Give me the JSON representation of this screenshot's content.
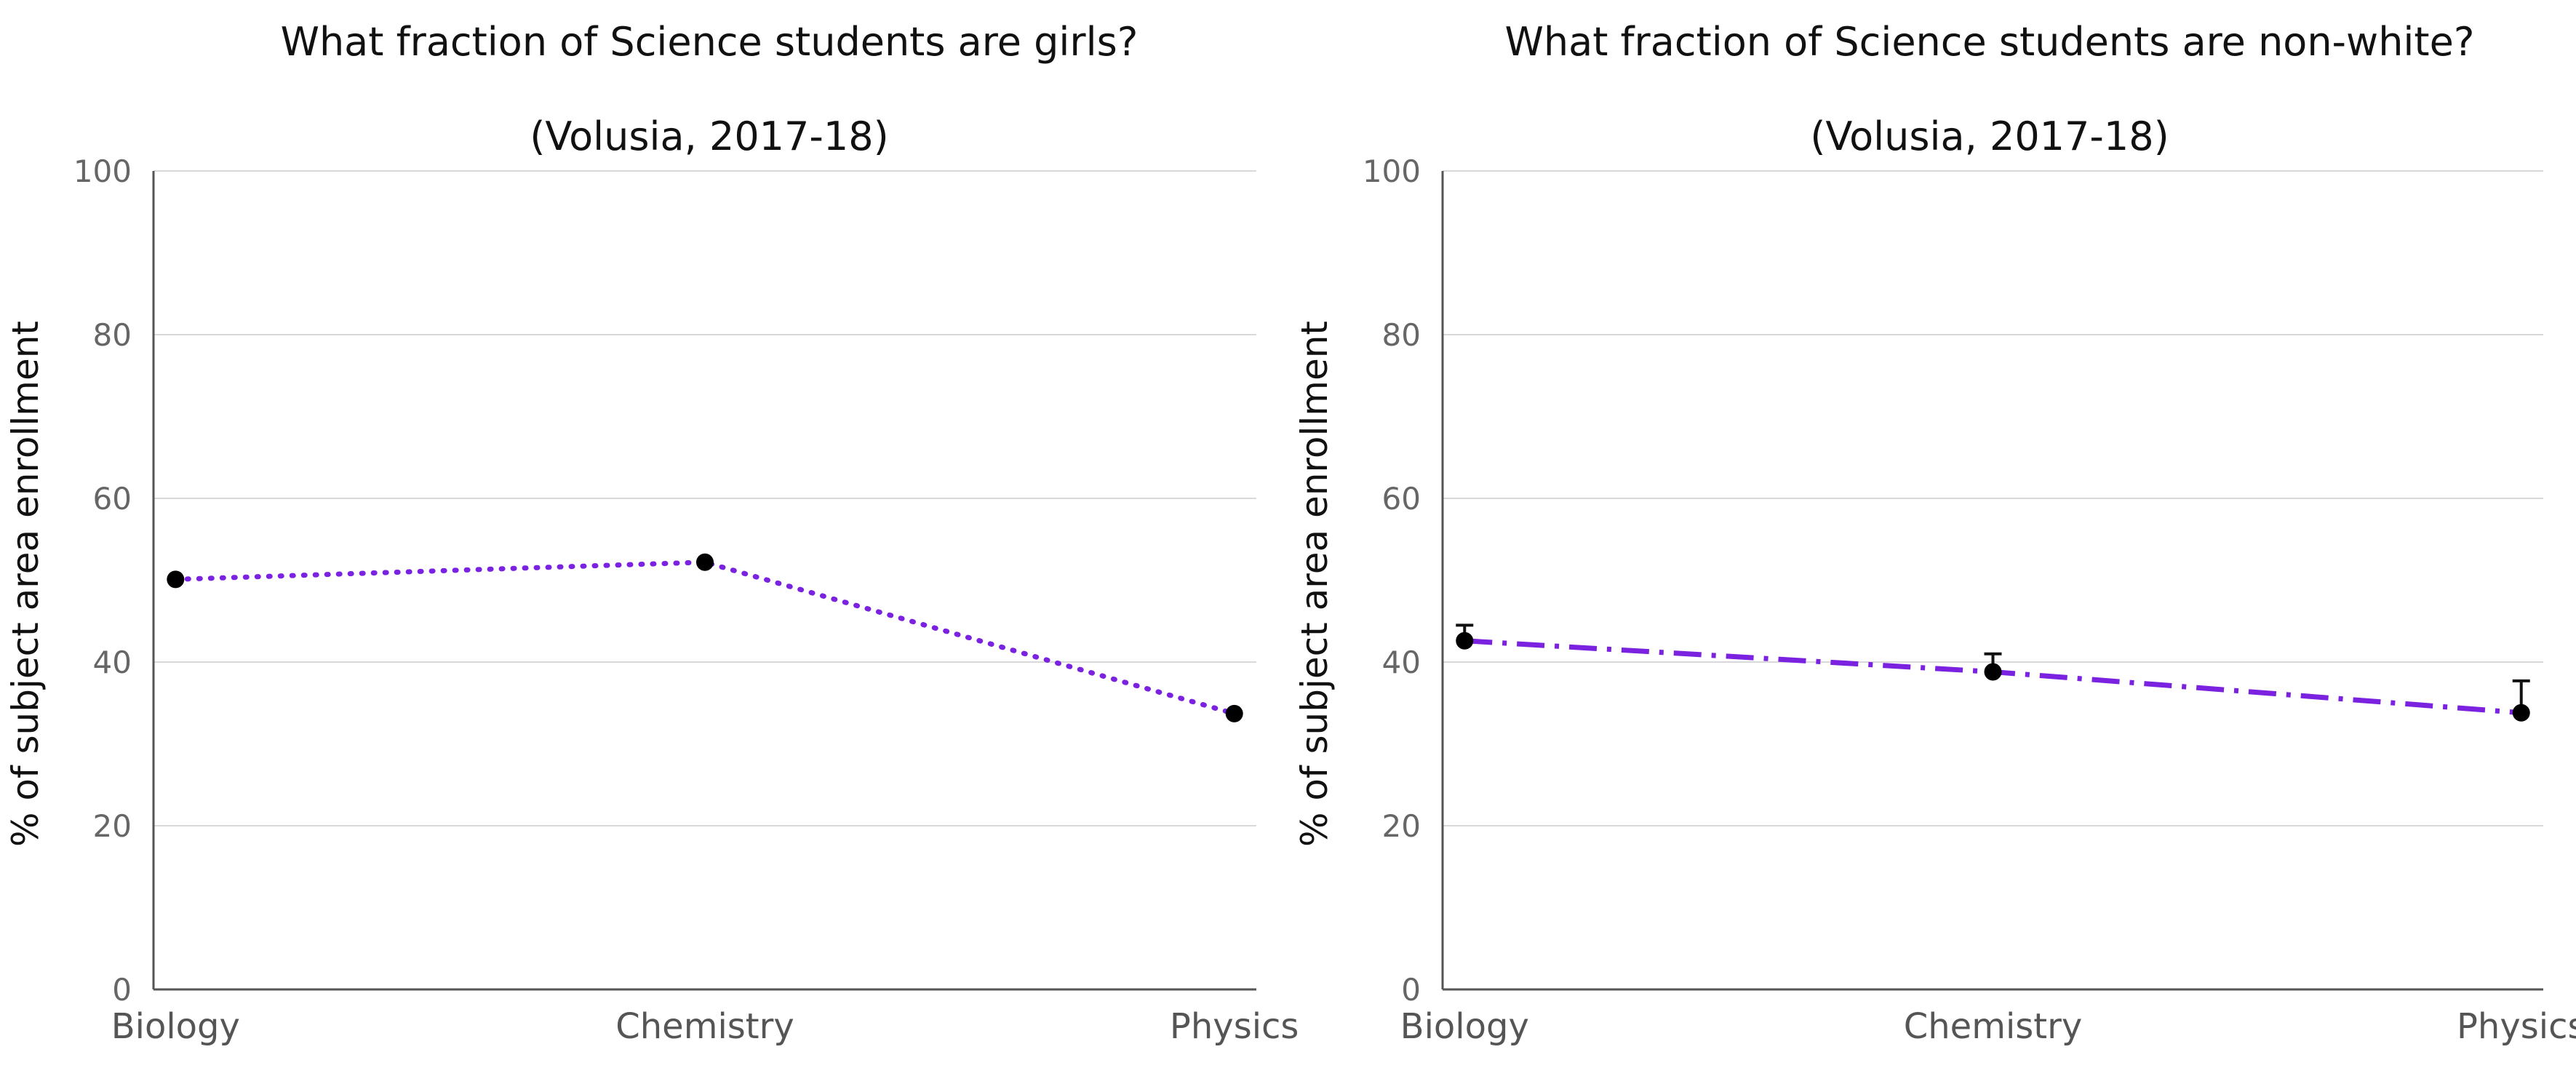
{
  "chart_data": [
    {
      "type": "line",
      "title": "What fraction of Science students are girls?",
      "subtitle": "(Volusia, 2017-18)",
      "xlabel": "",
      "ylabel": "% of subject area enrollment",
      "categories": [
        "Biology",
        "Chemistry",
        "Physics"
      ],
      "ylim": [
        0,
        100
      ],
      "yticks": [
        0,
        20,
        40,
        60,
        80,
        100
      ],
      "grid": true,
      "line_style": "dotted",
      "series": [
        {
          "values": [
            50.1,
            52.2,
            33.7
          ],
          "color": "#7b22e0"
        }
      ]
    },
    {
      "type": "line",
      "title": "What fraction of Science students are non-white?",
      "subtitle": "(Volusia, 2017-18)",
      "xlabel": "",
      "ylabel": "% of subject area enrollment",
      "categories": [
        "Biology",
        "Chemistry",
        "Physics"
      ],
      "ylim": [
        0,
        100
      ],
      "yticks": [
        0,
        20,
        40,
        60,
        80,
        100
      ],
      "grid": true,
      "line_style": "dashdot",
      "series": [
        {
          "values": [
            42.6,
            38.8,
            33.8
          ],
          "error_upper": [
            44.5,
            41.0,
            37.7
          ],
          "color": "#7b22e0"
        }
      ]
    }
  ]
}
